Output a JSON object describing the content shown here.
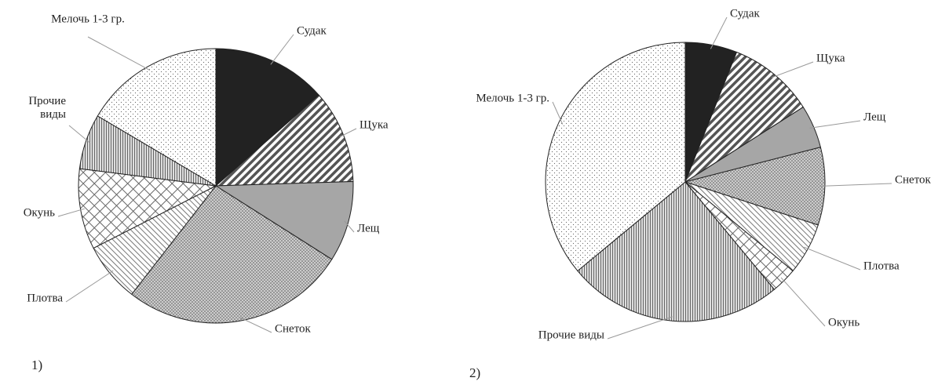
{
  "chart_data": [
    {
      "type": "pie",
      "caption": "1)",
      "categories": [
        "Судак",
        "Щука",
        "Лещ",
        "Снеток",
        "Плотва",
        "Окунь",
        "Прочие виды",
        "Мелочь 1-3 гр."
      ],
      "values": [
        13.5,
        11,
        9.5,
        26.5,
        7,
        9.5,
        6.5,
        16.5
      ]
    },
    {
      "type": "pie",
      "caption": "2)",
      "categories": [
        "Судак",
        "Щука",
        "Лещ",
        "Снеток",
        "Плотва",
        "Окунь",
        "Прочие виды",
        "Мелочь 1-3 гр."
      ],
      "values": [
        6,
        10,
        5,
        9,
        6,
        3,
        25,
        36
      ]
    }
  ]
}
